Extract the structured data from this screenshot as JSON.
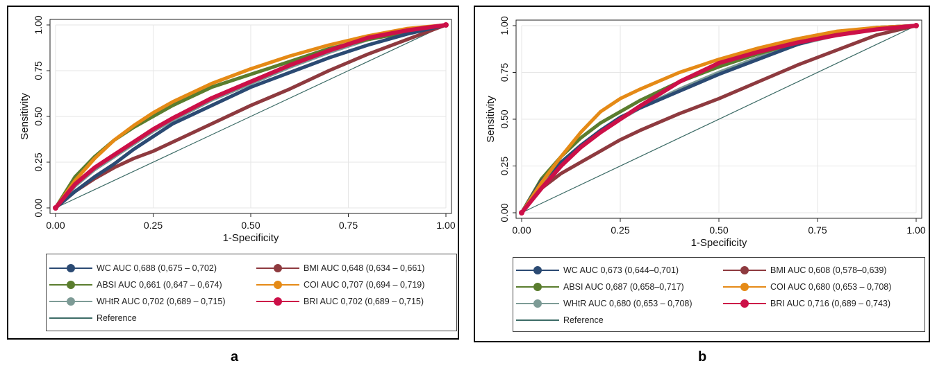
{
  "panels": [
    {
      "id": "a",
      "label": "a",
      "legend": {
        "WC": "WC AUC 0,688 (0,675 – 0,702)",
        "BMI": "BMI AUC 0,648 (0,634 – 0,661)",
        "ABSI": "ABSI AUC 0,661 (0,647 – 0,674)",
        "COI": "COI AUC 0,707 (0,694 – 0,719)",
        "WHtR": "WHtR AUC 0,702 (0,689 – 0,715)",
        "BRI": "BRI AUC 0,702 (0,689 – 0,715)",
        "Reference": "Reference"
      }
    },
    {
      "id": "b",
      "label": "b",
      "legend": {
        "WC": "WC AUC 0,673 (0,644–0,701)",
        "BMI": "BMI AUC 0,608 (0,578–0,639)",
        "ABSI": "ABSI AUC 0,687 (0,658–0,717)",
        "COI": "COI AUC 0,680 (0,653 – 0,708)",
        "WHtR": "WHtR AUC 0,680 (0,653 – 0,708)",
        "BRI": "BRI AUC 0,716 (0,689 – 0,743)",
        "Reference": "Reference"
      }
    }
  ],
  "colors": {
    "WC": "#2b4a73",
    "BMI": "#8e3a3f",
    "ABSI": "#5a7d2e",
    "COI": "#e58a16",
    "WHtR": "#7d9b96",
    "BRI": "#cc1048",
    "Reference": "#3c6b66"
  },
  "chart_data": [
    {
      "type": "line",
      "panel": "a",
      "xlabel": "1-Specificity",
      "ylabel": "Sensitivity",
      "xlim": [
        0,
        1
      ],
      "ylim": [
        0,
        1
      ],
      "xticks": [
        "0.00",
        "0.25",
        "0.50",
        "0.75",
        "1.00"
      ],
      "yticks": [
        "0.00",
        "0.25",
        "0.50",
        "0.75",
        "1.00"
      ],
      "grid": true,
      "series": [
        {
          "name": "WC",
          "x": [
            0,
            0.05,
            0.1,
            0.15,
            0.2,
            0.25,
            0.3,
            0.4,
            0.5,
            0.6,
            0.7,
            0.8,
            0.9,
            1.0
          ],
          "y": [
            0,
            0.09,
            0.17,
            0.24,
            0.32,
            0.39,
            0.46,
            0.56,
            0.66,
            0.74,
            0.82,
            0.89,
            0.95,
            1.0
          ]
        },
        {
          "name": "BMI",
          "x": [
            0,
            0.05,
            0.1,
            0.15,
            0.2,
            0.25,
            0.3,
            0.4,
            0.5,
            0.6,
            0.7,
            0.8,
            0.9,
            1.0
          ],
          "y": [
            0,
            0.09,
            0.16,
            0.22,
            0.27,
            0.31,
            0.36,
            0.46,
            0.56,
            0.65,
            0.75,
            0.84,
            0.92,
            1.0
          ]
        },
        {
          "name": "ABSI",
          "x": [
            0,
            0.05,
            0.1,
            0.15,
            0.2,
            0.25,
            0.3,
            0.4,
            0.5,
            0.6,
            0.7,
            0.8,
            0.9,
            1.0
          ],
          "y": [
            0,
            0.17,
            0.28,
            0.37,
            0.44,
            0.5,
            0.56,
            0.66,
            0.73,
            0.8,
            0.87,
            0.92,
            0.96,
            1.0
          ]
        },
        {
          "name": "COI",
          "x": [
            0,
            0.05,
            0.1,
            0.15,
            0.2,
            0.25,
            0.3,
            0.4,
            0.5,
            0.6,
            0.7,
            0.8,
            0.9,
            1.0
          ],
          "y": [
            0,
            0.15,
            0.27,
            0.37,
            0.45,
            0.52,
            0.58,
            0.68,
            0.76,
            0.83,
            0.89,
            0.94,
            0.98,
            1.0
          ]
        },
        {
          "name": "WHtR",
          "x": [
            0,
            0.05,
            0.1,
            0.15,
            0.2,
            0.25,
            0.3,
            0.4,
            0.5,
            0.6,
            0.7,
            0.8,
            0.9,
            1.0
          ],
          "y": [
            0,
            0.12,
            0.21,
            0.28,
            0.35,
            0.42,
            0.48,
            0.59,
            0.68,
            0.77,
            0.85,
            0.92,
            0.97,
            1.0
          ]
        },
        {
          "name": "BRI",
          "x": [
            0,
            0.05,
            0.1,
            0.15,
            0.2,
            0.25,
            0.3,
            0.4,
            0.5,
            0.6,
            0.7,
            0.8,
            0.9,
            1.0
          ],
          "y": [
            0,
            0.13,
            0.22,
            0.29,
            0.36,
            0.43,
            0.49,
            0.6,
            0.69,
            0.78,
            0.86,
            0.93,
            0.97,
            1.0
          ]
        },
        {
          "name": "Reference",
          "x": [
            0,
            1
          ],
          "y": [
            0,
            1
          ]
        }
      ]
    },
    {
      "type": "line",
      "panel": "b",
      "xlabel": "1-Specificity",
      "ylabel": "Sensitivity",
      "xlim": [
        0,
        1
      ],
      "ylim": [
        0,
        1
      ],
      "xticks": [
        "0.00",
        "0.25",
        "0.50",
        "0.75",
        "1.00"
      ],
      "yticks": [
        "0.00",
        "0.25",
        "0.50",
        "0.75",
        "1.00"
      ],
      "grid": true,
      "series": [
        {
          "name": "WC",
          "x": [
            0,
            0.05,
            0.1,
            0.15,
            0.2,
            0.25,
            0.3,
            0.4,
            0.5,
            0.6,
            0.7,
            0.8,
            0.9,
            1.0
          ],
          "y": [
            0,
            0.17,
            0.27,
            0.36,
            0.44,
            0.51,
            0.56,
            0.65,
            0.74,
            0.82,
            0.9,
            0.96,
            0.99,
            1.0
          ]
        },
        {
          "name": "BMI",
          "x": [
            0,
            0.05,
            0.1,
            0.15,
            0.2,
            0.25,
            0.3,
            0.4,
            0.5,
            0.6,
            0.7,
            0.8,
            0.9,
            1.0
          ],
          "y": [
            0,
            0.13,
            0.21,
            0.27,
            0.33,
            0.39,
            0.44,
            0.53,
            0.61,
            0.7,
            0.79,
            0.87,
            0.95,
            1.0
          ]
        },
        {
          "name": "ABSI",
          "x": [
            0,
            0.05,
            0.1,
            0.15,
            0.2,
            0.25,
            0.3,
            0.4,
            0.5,
            0.6,
            0.7,
            0.8,
            0.9,
            1.0
          ],
          "y": [
            0,
            0.18,
            0.3,
            0.4,
            0.48,
            0.54,
            0.6,
            0.7,
            0.78,
            0.85,
            0.91,
            0.95,
            0.98,
            1.0
          ]
        },
        {
          "name": "COI",
          "x": [
            0,
            0.05,
            0.1,
            0.15,
            0.2,
            0.25,
            0.3,
            0.4,
            0.5,
            0.6,
            0.7,
            0.8,
            0.9,
            1.0
          ],
          "y": [
            0,
            0.16,
            0.3,
            0.43,
            0.54,
            0.61,
            0.66,
            0.75,
            0.82,
            0.88,
            0.93,
            0.97,
            0.99,
            1.0
          ]
        },
        {
          "name": "WHtR",
          "x": [
            0,
            0.05,
            0.1,
            0.15,
            0.2,
            0.25,
            0.3,
            0.4,
            0.5,
            0.6,
            0.7,
            0.8,
            0.9,
            1.0
          ],
          "y": [
            0,
            0.16,
            0.27,
            0.36,
            0.44,
            0.5,
            0.56,
            0.66,
            0.75,
            0.83,
            0.9,
            0.95,
            0.99,
            1.0
          ]
        },
        {
          "name": "BRI",
          "x": [
            0,
            0.05,
            0.1,
            0.15,
            0.2,
            0.25,
            0.3,
            0.4,
            0.5,
            0.6,
            0.7,
            0.8,
            0.9,
            1.0
          ],
          "y": [
            0,
            0.13,
            0.25,
            0.35,
            0.43,
            0.5,
            0.57,
            0.7,
            0.8,
            0.86,
            0.91,
            0.95,
            0.98,
            1.0
          ]
        },
        {
          "name": "Reference",
          "x": [
            0,
            1
          ],
          "y": [
            0,
            1
          ]
        }
      ]
    }
  ]
}
